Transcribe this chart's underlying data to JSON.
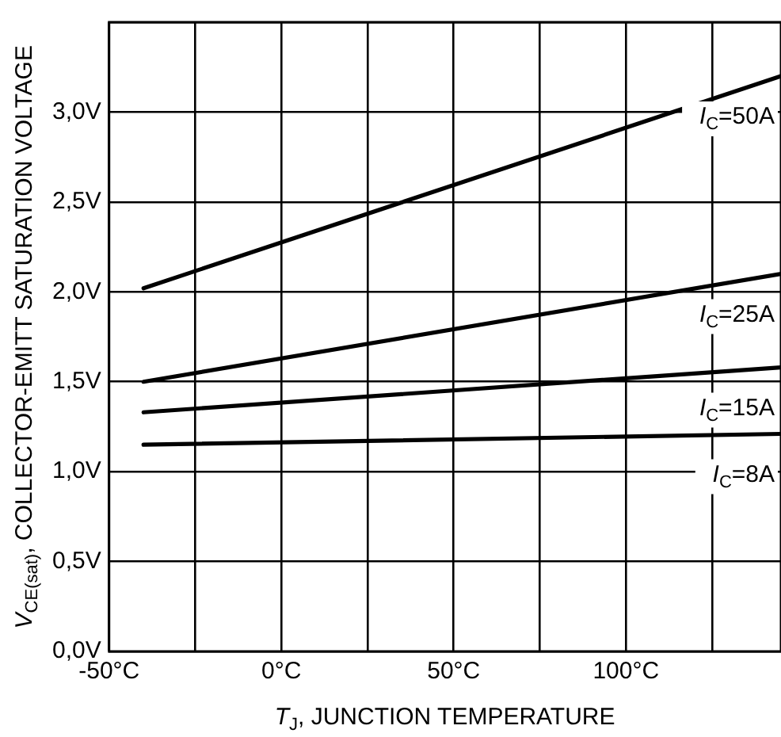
{
  "chart_data": {
    "type": "line",
    "xlabel": "T$_{J}$, JUNCTION TEMPERATURE",
    "ylabel": "V$_{CE(sat)}$, COLLECTOR-EMITT SATURATION VOLTAGE",
    "x": [
      -40,
      145
    ],
    "series": [
      {
        "color": "#000000",
        "values": [
          2.02,
          3.2
        ]
      },
      {
        "color": "#000000",
        "values": [
          1.5,
          2.1
        ]
      },
      {
        "color": "#000000",
        "values": [
          1.33,
          1.58
        ]
      },
      {
        "color": "#000000",
        "values": [
          1.15,
          1.21
        ]
      }
    ],
    "xlim": [
      -50,
      145
    ],
    "xticks": [
      {
        "value": -50,
        "label": "-50°C"
      },
      {
        "value": -25,
        "label": null
      },
      {
        "value": 0,
        "label": "0°C"
      },
      {
        "value": 25,
        "label": null
      },
      {
        "value": 50,
        "label": "50°C"
      },
      {
        "value": 75,
        "label": null
      },
      {
        "value": 100,
        "label": "100°C"
      },
      {
        "value": 125,
        "label": null
      }
    ],
    "ylim": [
      0,
      3.5
    ],
    "yticks": [
      {
        "value": 0,
        "label": "0,0V"
      },
      {
        "value": 0.5,
        "label": "0,5V"
      },
      {
        "value": 1,
        "label": "1,0V"
      },
      {
        "value": 1.5,
        "label": "1,5V"
      },
      {
        "value": 2,
        "label": "2,0V"
      },
      {
        "value": 2.5,
        "label": "2,5V"
      },
      {
        "value": 3,
        "label": "3,0V"
      },
      {
        "value": 3.5,
        "label": null
      }
    ],
    "grid": true,
    "legend": false,
    "marker": "none",
    "line_style": "solid",
    "annotations": [
      "I$_{C}$=50A",
      "I$_{C}$=25A",
      "I$_{C}$=15A",
      "I$_{C}$=8A"
    ]
  }
}
